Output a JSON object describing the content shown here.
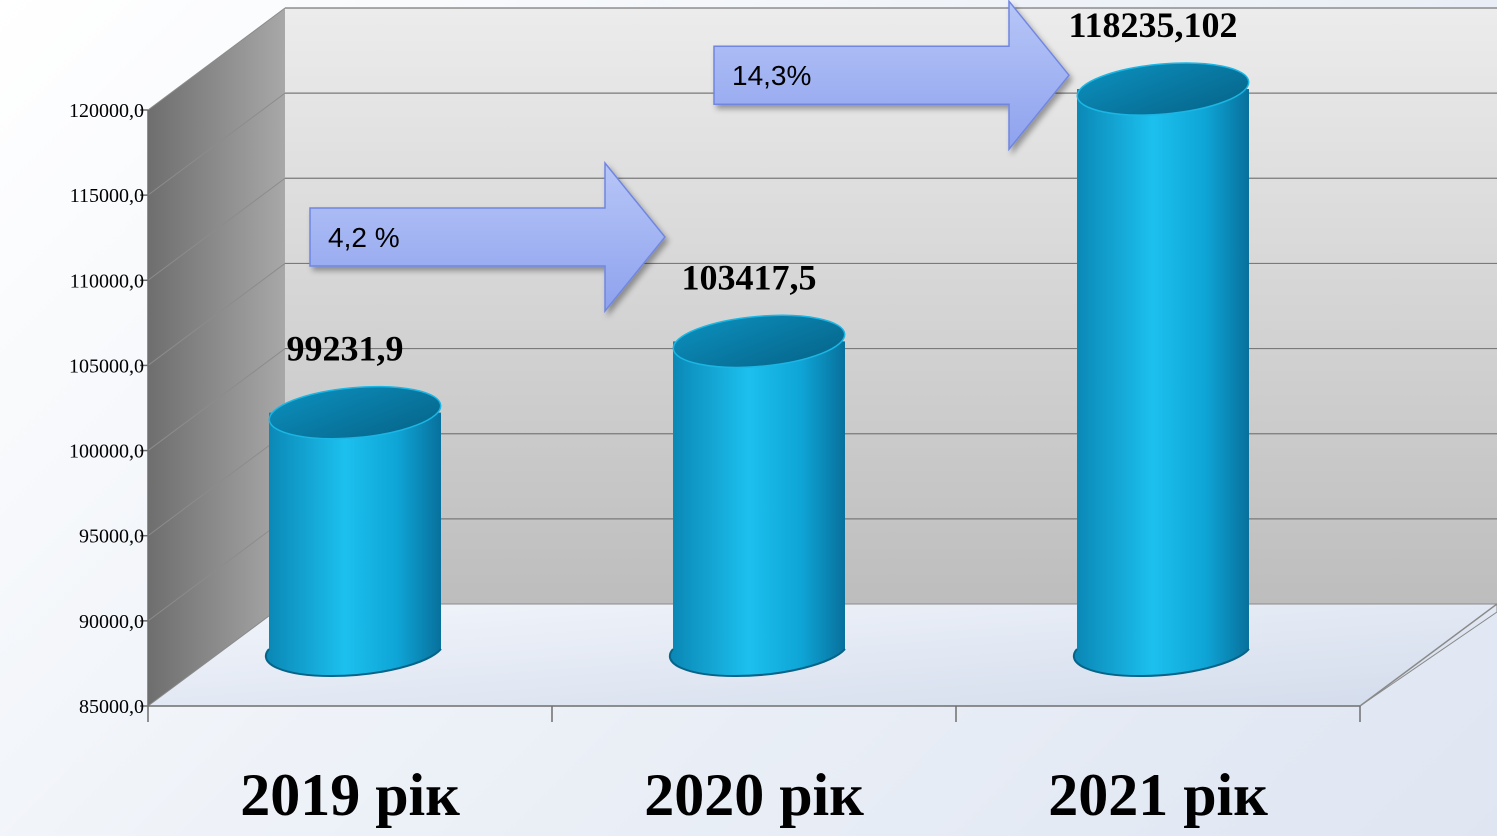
{
  "chart_data": {
    "type": "bar",
    "style": "3d-cylinder",
    "categories": [
      "2019 рік",
      "2020 рік",
      "2021 рік"
    ],
    "values": [
      99231.9,
      103417.5,
      118235.102
    ],
    "data_labels": [
      "99231,9",
      "103417,5",
      "118235,102"
    ],
    "ylim": [
      85000,
      120000
    ],
    "yticks": [
      85000,
      90000,
      95000,
      100000,
      105000,
      110000,
      115000,
      120000
    ],
    "ytick_labels": [
      "85000,0",
      "90000,0",
      "95000,0",
      "100000,0",
      "105000,0",
      "110000,0",
      "115000,0",
      "120000,0"
    ],
    "grid": true,
    "legend": "none",
    "annotations": [
      {
        "text": "4,2 %",
        "from": 0,
        "to": 1
      },
      {
        "text": "14,3%",
        "from": 1,
        "to": 2
      }
    ],
    "colors": {
      "bar": "#0fa6d6",
      "bar_dark": "#076a92",
      "arrow": "#9aaef0",
      "wall": "#d0d0d0"
    }
  }
}
